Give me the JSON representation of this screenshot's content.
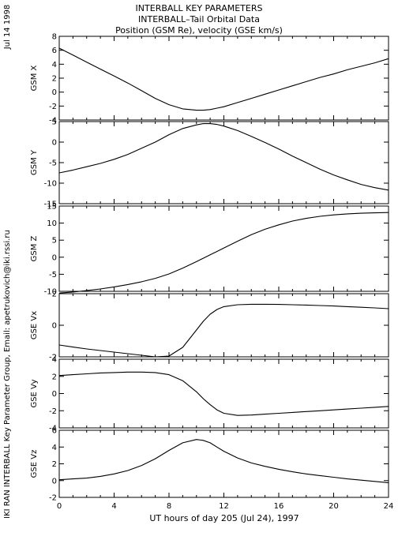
{
  "header": {
    "title_lines": [
      "INTERBALL KEY PARAMETERS",
      "INTERBALL–Tail Orbital Data",
      "Position (GSM Re), velocity (GSE km/s)"
    ],
    "date_stamp": "Jul 14 1998",
    "credit": "IKI RAN INTERBALL Key Parameter Group, Email: apetrukovich@iki.rssi.ru"
  },
  "chart_data": {
    "type": "line",
    "xlabel": "UT hours of day 205 (Jul 24), 1997",
    "xlim": [
      0,
      24
    ],
    "xticks": [
      0,
      4,
      8,
      12,
      16,
      20,
      24
    ],
    "line_color": "#000000",
    "grid": false,
    "x": [
      0,
      1,
      2,
      3,
      4,
      5,
      6,
      7,
      8,
      9,
      10,
      10.5,
      11,
      11.5,
      12,
      13,
      14,
      15,
      16,
      17,
      18,
      19,
      20,
      21,
      22,
      23,
      24
    ],
    "panels": [
      {
        "ylabel": "GSM X",
        "ylim": [
          -4,
          8
        ],
        "yticks": [
          -4,
          -2,
          0,
          2,
          4,
          6,
          8
        ],
        "values": [
          6.3,
          5.3,
          4.3,
          3.3,
          2.3,
          1.3,
          0.2,
          -0.9,
          -1.8,
          -2.4,
          -2.6,
          -2.6,
          -2.5,
          -2.3,
          -2.1,
          -1.5,
          -0.9,
          -0.3,
          0.3,
          0.9,
          1.5,
          2.1,
          2.6,
          3.2,
          3.7,
          4.2,
          4.8
        ]
      },
      {
        "ylabel": "GSM Y",
        "ylim": [
          -15,
          5
        ],
        "yticks": [
          -15,
          -10,
          -5,
          0,
          5
        ],
        "values": [
          -7.5,
          -6.8,
          -6.0,
          -5.2,
          -4.2,
          -3.0,
          -1.5,
          0.0,
          1.8,
          3.3,
          4.2,
          4.5,
          4.5,
          4.3,
          3.9,
          2.8,
          1.4,
          -0.1,
          -1.7,
          -3.4,
          -5.0,
          -6.6,
          -8.0,
          -9.2,
          -10.3,
          -11.1,
          -11.7
        ]
      },
      {
        "ylabel": "GSM Z",
        "ylim": [
          -10,
          15
        ],
        "yticks": [
          -10,
          -5,
          0,
          5,
          10,
          15
        ],
        "values": [
          -10.5,
          -10.2,
          -9.8,
          -9.3,
          -8.7,
          -8.0,
          -7.2,
          -6.2,
          -4.9,
          -3.2,
          -1.3,
          -0.3,
          0.7,
          1.7,
          2.7,
          4.7,
          6.6,
          8.2,
          9.5,
          10.6,
          11.4,
          12.0,
          12.4,
          12.7,
          12.9,
          13.0,
          13.1
        ]
      },
      {
        "ylabel": "GSE Vx",
        "ylim": [
          -2,
          2
        ],
        "yticks": [
          -2,
          0,
          2
        ],
        "values": [
          -1.25,
          -1.38,
          -1.5,
          -1.6,
          -1.7,
          -1.8,
          -1.9,
          -2.0,
          -1.95,
          -1.4,
          -0.3,
          0.25,
          0.7,
          1.0,
          1.18,
          1.3,
          1.33,
          1.33,
          1.32,
          1.3,
          1.28,
          1.25,
          1.22,
          1.18,
          1.14,
          1.1,
          1.05
        ]
      },
      {
        "ylabel": "GSE Vy",
        "ylim": [
          -4,
          4
        ],
        "yticks": [
          -4,
          -2,
          0,
          2,
          4
        ],
        "values": [
          2.1,
          2.2,
          2.3,
          2.4,
          2.45,
          2.5,
          2.5,
          2.45,
          2.2,
          1.5,
          0.2,
          -0.6,
          -1.3,
          -1.9,
          -2.3,
          -2.55,
          -2.5,
          -2.4,
          -2.3,
          -2.2,
          -2.1,
          -2.0,
          -1.9,
          -1.8,
          -1.7,
          -1.6,
          -1.5
        ]
      },
      {
        "ylabel": "GSE Vz",
        "ylim": [
          -2,
          6
        ],
        "yticks": [
          -2,
          0,
          2,
          4,
          6
        ],
        "values": [
          0.1,
          0.2,
          0.3,
          0.5,
          0.8,
          1.2,
          1.8,
          2.6,
          3.6,
          4.5,
          4.9,
          4.8,
          4.5,
          4.0,
          3.5,
          2.7,
          2.1,
          1.7,
          1.35,
          1.05,
          0.8,
          0.6,
          0.4,
          0.2,
          0.05,
          -0.1,
          -0.25
        ]
      }
    ]
  }
}
